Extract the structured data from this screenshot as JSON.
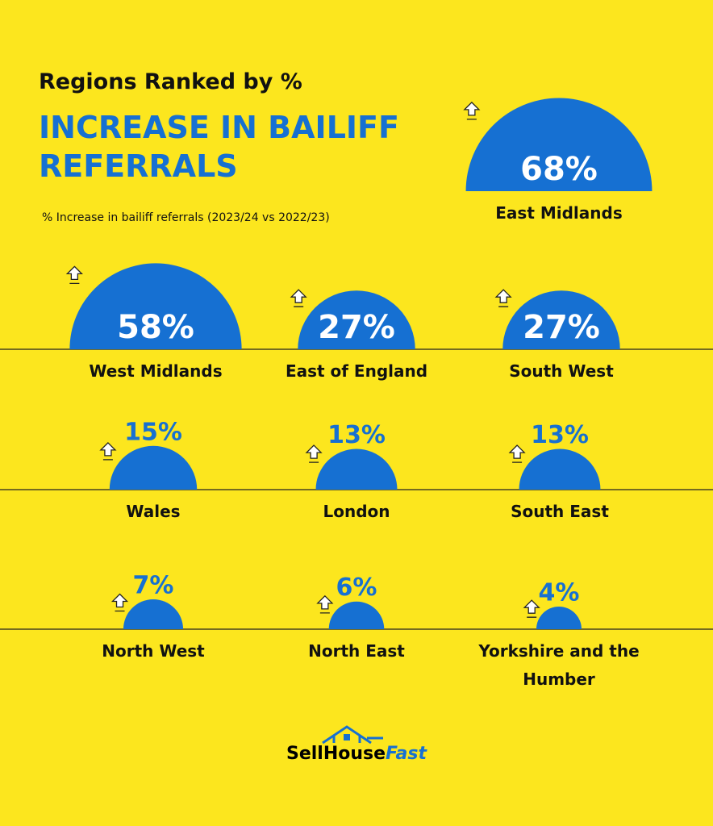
{
  "chart_data": {
    "type": "semicircle",
    "title": "Regions Ranked by %",
    "title_highlight": "INCREASE IN BAILIFF REFERRALS",
    "subtitle": "% Increase in bailiff referrals (2023/24 vs 2022/23)",
    "categories": [
      "East Midlands",
      "West Midlands",
      "East of England",
      "South West",
      "Wales",
      "London",
      "South East",
      "North West",
      "North East",
      "Yorkshire and the Humber"
    ],
    "values": [
      68,
      58,
      27,
      27,
      15,
      13,
      13,
      7,
      6,
      4
    ],
    "value_labels": [
      "68%",
      "58%",
      "27%",
      "27%",
      "15%",
      "13%",
      "13%",
      "7%",
      "6%",
      "4%"
    ],
    "color": "#1670d2",
    "logo": {
      "text": "SellHouse",
      "accent": "Fast"
    }
  }
}
